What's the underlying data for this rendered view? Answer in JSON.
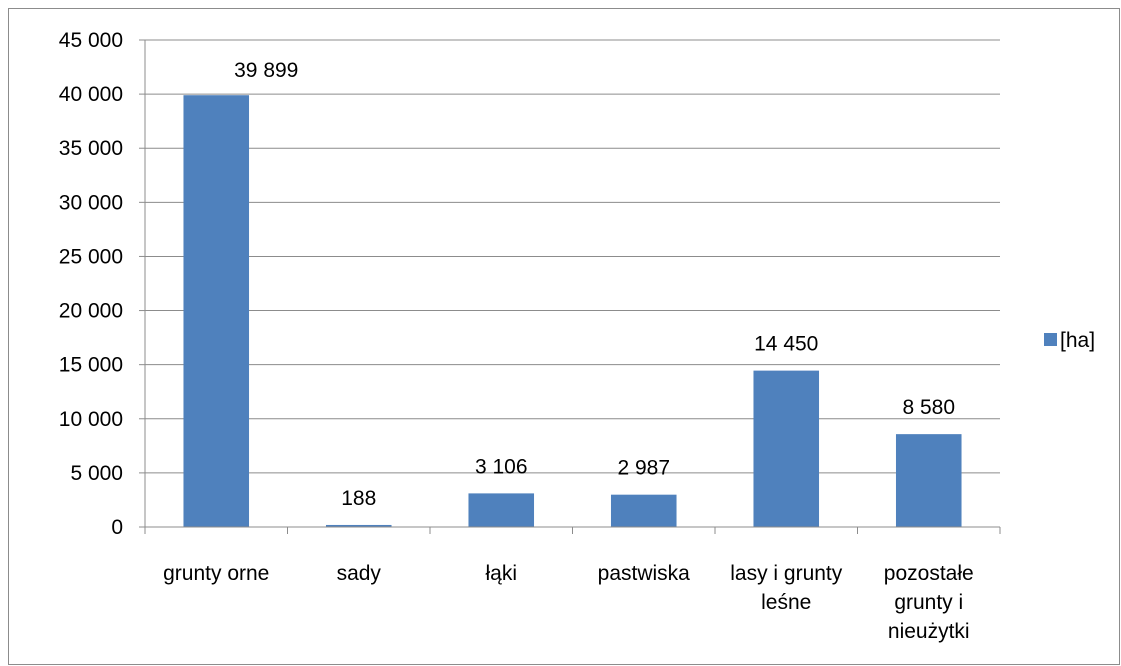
{
  "chart_data": {
    "type": "bar",
    "categories": [
      [
        "grunty orne"
      ],
      [
        "sady"
      ],
      [
        "łąki"
      ],
      [
        "pastwiska"
      ],
      [
        "lasy i grunty",
        "leśne"
      ],
      [
        "pozostałe",
        "grunty i",
        "nieużytki"
      ]
    ],
    "series": [
      {
        "name": "[ha]",
        "color": "#4f81bd",
        "values": [
          39899,
          188,
          3106,
          2987,
          14450,
          8580
        ],
        "data_labels": [
          "39 899",
          "188",
          "3 106",
          "2 987",
          "14 450",
          "8 580"
        ]
      }
    ],
    "y_ticks": [
      "0",
      "5 000",
      "10 000",
      "15 000",
      "20 000",
      "25 000",
      "30 000",
      "35 000",
      "40 000",
      "45 000"
    ],
    "ylim": [
      0,
      45000
    ],
    "grid": true,
    "legend_position": "right"
  }
}
